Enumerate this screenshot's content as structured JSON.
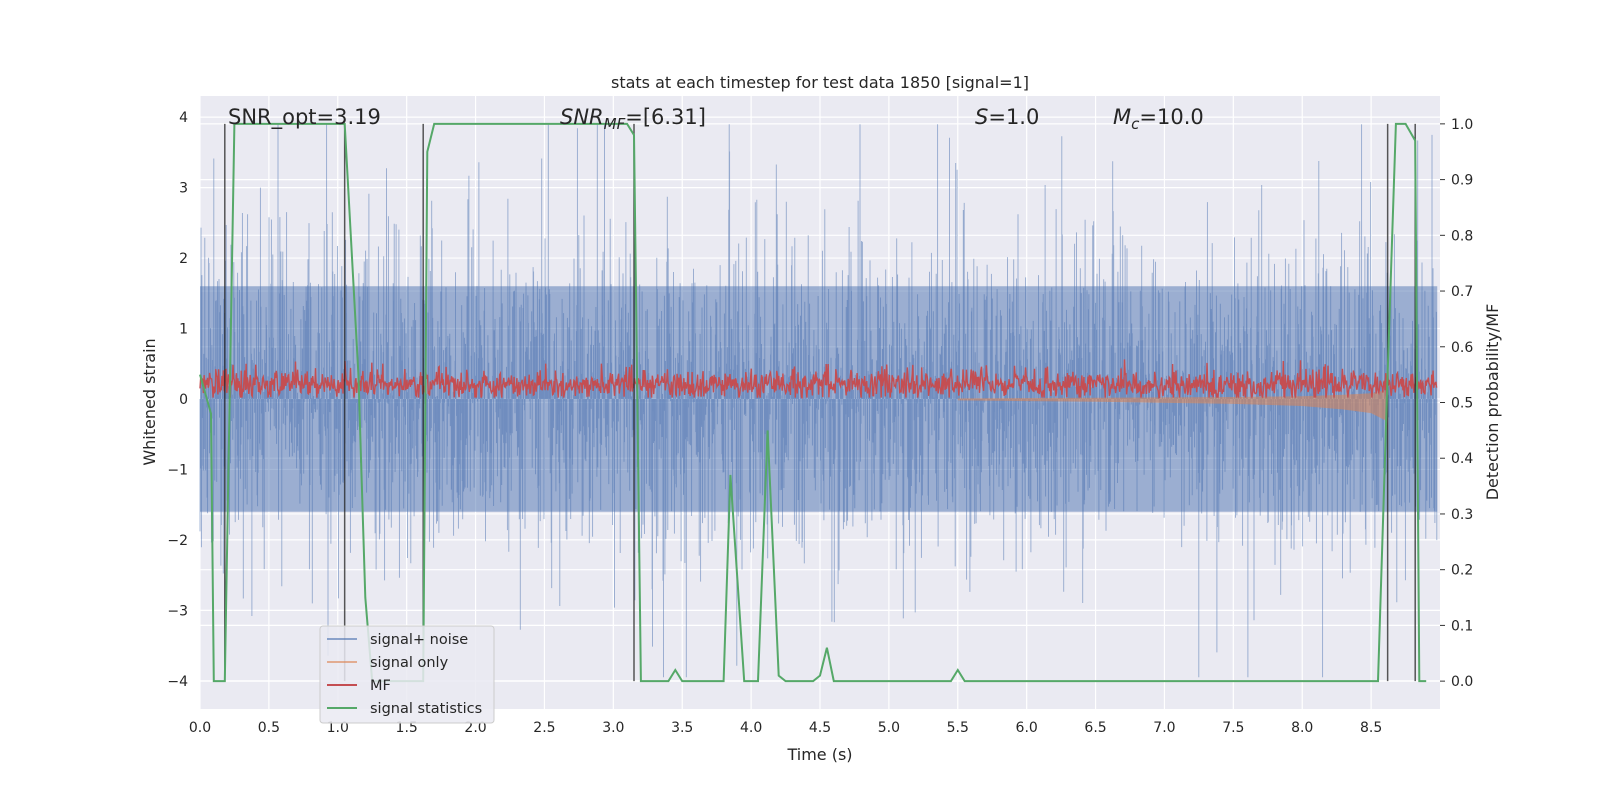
{
  "chart_data": {
    "type": "line",
    "title": "stats at each timestep for test data 1850 [signal=1]",
    "xlabel": "Time (s)",
    "ylabel": "Whitened strain",
    "y2label": "Detection probability/MF",
    "xlim": [
      0,
      9.0
    ],
    "ylim": [
      -4.4,
      4.3
    ],
    "y2lim": [
      -0.05,
      1.05
    ],
    "xticks": [
      "0.0",
      "0.5",
      "1.0",
      "1.5",
      "2.0",
      "2.5",
      "3.0",
      "3.5",
      "4.0",
      "4.5",
      "5.0",
      "5.5",
      "6.0",
      "6.5",
      "7.0",
      "7.5",
      "8.0",
      "8.5"
    ],
    "yticks": [
      "4",
      "3",
      "2",
      "1",
      "0",
      "−1",
      "−2",
      "−3",
      "−4"
    ],
    "y2ticks": [
      "1.0",
      "0.9",
      "0.8",
      "0.7",
      "0.6",
      "0.5",
      "0.4",
      "0.3",
      "0.2",
      "0.1",
      "0.0"
    ],
    "grid": true,
    "legend_position": "lower-left",
    "annotations": {
      "snr_opt": "SNR_opt=3.19",
      "snr_mf_sym": "SNR",
      "snr_mf_sub": "MF",
      "snr_mf_val": "=[6.31]",
      "s_sym": "S",
      "s_val": "=1.0",
      "mc_sym": "M",
      "mc_sub": "c",
      "mc_val": "=10.0"
    },
    "series": [
      {
        "name": "signal+ noise",
        "color": "#4c72b0",
        "axis": "left",
        "description": "dense noise band approx. between -1.6 and 1.6, spikes to about ±3.8"
      },
      {
        "name": "signal only",
        "color": "#dd8452",
        "axis": "left",
        "envelope": {
          "x": [
            5.5,
            6.5,
            7.5,
            8.0,
            8.3,
            8.5,
            8.6,
            8.62
          ],
          "amp": [
            0.02,
            0.04,
            0.07,
            0.1,
            0.15,
            0.2,
            0.3,
            0.45
          ]
        }
      },
      {
        "name": "MF",
        "color": "#c44e52",
        "axis": "left",
        "description": "noisy trace around 0.2 with peaks near 0.6"
      },
      {
        "name": "signal statistics",
        "color": "#55a868",
        "axis": "right",
        "x": [
          0.0,
          0.08,
          0.1,
          0.18,
          0.25,
          1.05,
          1.15,
          1.2,
          1.25,
          1.35,
          1.62,
          1.65,
          1.7,
          3.1,
          3.15,
          3.2,
          3.4,
          3.45,
          3.5,
          3.8,
          3.85,
          3.95,
          4.05,
          4.12,
          4.2,
          4.25,
          4.45,
          4.5,
          4.55,
          4.6,
          5.45,
          5.5,
          5.55,
          8.55,
          8.62,
          8.68,
          8.75,
          8.82,
          8.85,
          8.9
        ],
        "values": [
          0.55,
          0.48,
          0.0,
          0.0,
          1.0,
          1.0,
          0.55,
          0.15,
          0.0,
          0.0,
          0.0,
          0.95,
          1.0,
          1.0,
          0.98,
          0.0,
          0.0,
          0.02,
          0.0,
          0.0,
          0.37,
          0.0,
          0.0,
          0.45,
          0.01,
          0.0,
          0.0,
          0.01,
          0.06,
          0.0,
          0.0,
          0.02,
          0.0,
          0.0,
          0.55,
          1.0,
          1.0,
          0.97,
          0.0,
          0.0
        ]
      },
      {
        "name": "",
        "color": "#222222",
        "axis": "right",
        "kind": "vertical-markers",
        "x": [
          0.18,
          1.05,
          1.62,
          3.15,
          8.62,
          8.82
        ]
      }
    ]
  }
}
